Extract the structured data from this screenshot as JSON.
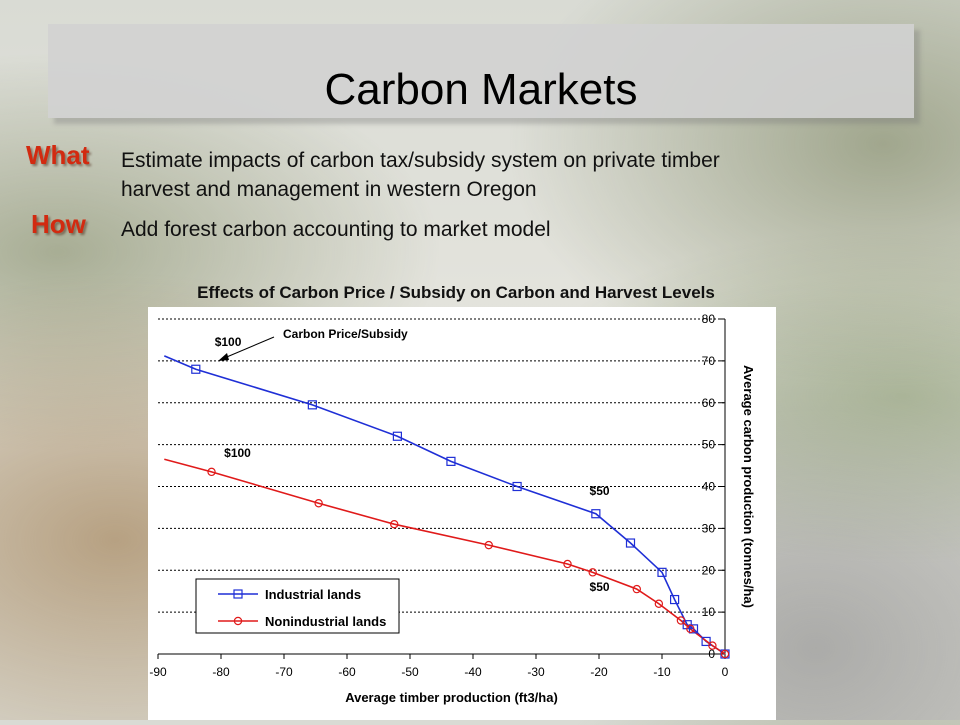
{
  "slide": {
    "title": "Carbon Markets",
    "what_label": "What",
    "what_text_line1": "Estimate impacts of carbon tax/subsidy system on private timber",
    "what_text_line2": "harvest and management in western Oregon",
    "how_label": "How",
    "how_text": "Add forest carbon accounting to market model"
  },
  "colors": {
    "heading": "#d22a10",
    "industrial": "#1f2fd6",
    "nonindustrial": "#e01a1a"
  },
  "chart_data": {
    "type": "line",
    "title": "Effects of Carbon Price / Subsidy on Carbon and Harvest Levels",
    "xlabel": "Average timber production (ft3/ha)",
    "ylabel": "Average carbon production (tonnes/ha)",
    "xlim": [
      -90,
      0
    ],
    "ylim": [
      0,
      80
    ],
    "x_ticks": [
      -90,
      -80,
      -70,
      -60,
      -50,
      -40,
      -30,
      -20,
      -10,
      0
    ],
    "y_ticks": [
      0,
      10,
      20,
      30,
      40,
      50,
      60,
      70,
      80
    ],
    "grid": "horizontal dotted",
    "y_axis_side": "right",
    "legend_position": "bottom-left",
    "annotation": "Carbon Price/Subsidy",
    "series": [
      {
        "name": "Industrial lands",
        "marker": "square",
        "line_extension": [
          [
            -89,
            71.2
          ]
        ],
        "x": [
          -84,
          -65.5,
          -52,
          -43.5,
          -33,
          -20.5,
          -15,
          -10,
          -8,
          -6,
          -5,
          -3,
          0
        ],
        "y": [
          68,
          59.5,
          52,
          46,
          40,
          33.5,
          26.5,
          19.5,
          13,
          7,
          6,
          3,
          0
        ]
      },
      {
        "name": "Nonindustrial lands",
        "marker": "circle",
        "line_extension": [
          [
            -89,
            46.5
          ]
        ],
        "x": [
          -81.5,
          -64.5,
          -52.5,
          -37.5,
          -25,
          -21,
          -14,
          -10.5,
          -7,
          -5.5,
          -2,
          0
        ],
        "y": [
          43.5,
          36,
          31,
          26,
          21.5,
          19.5,
          15.5,
          12,
          8,
          6,
          2,
          0
        ]
      }
    ],
    "price_labels": [
      {
        "text": "$100",
        "series": 0,
        "x": -81,
        "y": 73.5
      },
      {
        "text": "$100",
        "series": 1,
        "x": -79.5,
        "y": 47
      },
      {
        "text": "$50",
        "series": 0,
        "x": -21.5,
        "y": 38
      },
      {
        "text": "$50",
        "series": 1,
        "x": -21.5,
        "y": 15
      }
    ]
  }
}
